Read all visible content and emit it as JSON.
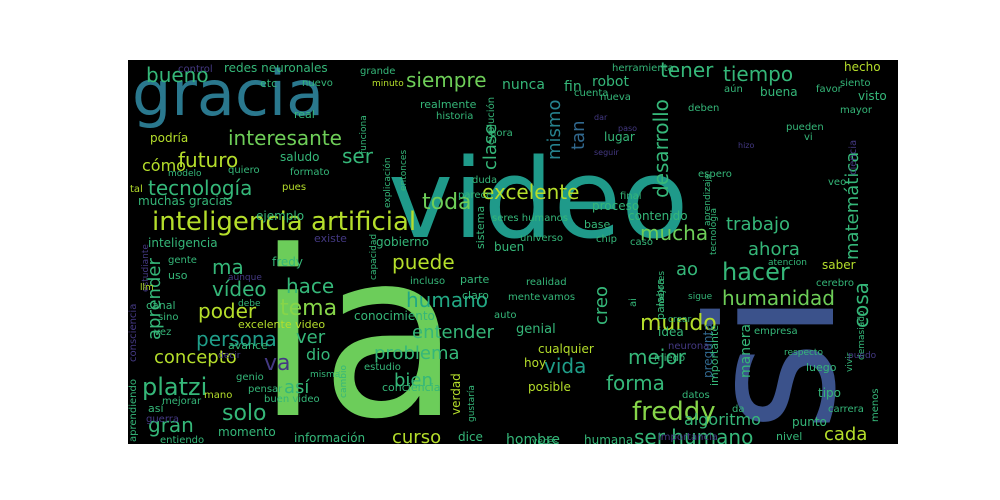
{
  "chart_data": {
    "type": "wordcloud",
    "words": [
      {
        "text": "ia",
        "color": "#6ccd5a"
      },
      {
        "text": "si",
        "color": "#3b528b"
      },
      {
        "text": "video",
        "color": "#1f9a8a"
      },
      {
        "text": "gracia",
        "color": "#2a788e"
      },
      {
        "text": "inteligencia artificial",
        "color": "#b5de2b"
      },
      {
        "text": "excelente",
        "color": "#b5de2b"
      },
      {
        "text": "freddy",
        "color": "#86d549"
      },
      {
        "text": "platzi",
        "color": "#35b779"
      },
      {
        "text": "humano",
        "color": "#22a884"
      },
      {
        "text": "hacer",
        "color": "#35b779"
      },
      {
        "text": "tecnología",
        "color": "#35b779"
      },
      {
        "text": "futuro",
        "color": "#b5de2b"
      },
      {
        "text": "interesante",
        "color": "#6ece58"
      },
      {
        "text": "persona",
        "color": "#1f9e89"
      },
      {
        "text": "toda",
        "color": "#6ece58"
      },
      {
        "text": "tema",
        "color": "#86d549"
      },
      {
        "text": "desarrollo",
        "color": "#35b779"
      },
      {
        "text": "solo",
        "color": "#35b779"
      },
      {
        "text": "mundo",
        "color": "#b5de2b"
      },
      {
        "text": "vida",
        "color": "#1f9e89"
      },
      {
        "text": "puede",
        "color": "#b5de2b"
      },
      {
        "text": "mucha",
        "color": "#6ece58"
      },
      {
        "text": "humanidad",
        "color": "#6ece58"
      },
      {
        "text": "bueno",
        "color": "#35b779"
      },
      {
        "text": "siempre",
        "color": "#6ece58"
      },
      {
        "text": "tiempo",
        "color": "#35b779"
      },
      {
        "text": "tener",
        "color": "#35b779"
      },
      {
        "text": "ser",
        "color": "#35b779"
      },
      {
        "text": "cómo",
        "color": "#b5de2b"
      },
      {
        "text": "ma",
        "color": "#35b779"
      },
      {
        "text": "vídeo",
        "color": "#35b779"
      },
      {
        "text": "poder",
        "color": "#b5de2b"
      },
      {
        "text": "concepto",
        "color": "#b5de2b"
      },
      {
        "text": "mejor",
        "color": "#35b779"
      },
      {
        "text": "forma",
        "color": "#35b779"
      },
      {
        "text": "ser humano",
        "color": "#35b779"
      },
      {
        "text": "entender",
        "color": "#35b779"
      },
      {
        "text": "problema",
        "color": "#35b779"
      },
      {
        "text": "gran",
        "color": "#35b779"
      },
      {
        "text": "hace",
        "color": "#35b779"
      },
      {
        "text": "ahora",
        "color": "#35b779"
      },
      {
        "text": "ao",
        "color": "#35b779"
      },
      {
        "text": "trabajo",
        "color": "#35b779"
      },
      {
        "text": "creo",
        "color": "#35b779"
      },
      {
        "text": "cosa",
        "color": "#35b779"
      },
      {
        "text": "matemática",
        "color": "#35b779"
      },
      {
        "text": "mismo",
        "color": "#26828e"
      },
      {
        "text": "tan",
        "color": "#31688e"
      },
      {
        "text": "clase",
        "color": "#35b779"
      },
      {
        "text": "aprender",
        "color": "#35b779"
      },
      {
        "text": "así",
        "color": "#35b779"
      },
      {
        "text": "bien",
        "color": "#35b779"
      },
      {
        "text": "ver",
        "color": "#35b779"
      },
      {
        "text": "dio",
        "color": "#35b779"
      },
      {
        "text": "va",
        "color": "#443983"
      },
      {
        "text": "curso",
        "color": "#b5de2b"
      },
      {
        "text": "cada",
        "color": "#b5de2b"
      },
      {
        "text": "algoritmo",
        "color": "#35b779"
      },
      {
        "text": "nunca",
        "color": "#35b779"
      },
      {
        "text": "robot",
        "color": "#35b779"
      },
      {
        "text": "fin",
        "color": "#35b779"
      },
      {
        "text": "buena",
        "color": "#35b779"
      },
      {
        "text": "hecho",
        "color": "#b5de2b"
      },
      {
        "text": "visto",
        "color": "#35b779"
      },
      {
        "text": "mayor",
        "color": "#35b779"
      },
      {
        "text": "ciencia",
        "color": "#443983"
      },
      {
        "text": "pregunta",
        "color": "#31688e"
      },
      {
        "text": "manera",
        "color": "#35b779"
      },
      {
        "text": "tipo",
        "color": "#35b779"
      },
      {
        "text": "saber",
        "color": "#b5de2b"
      },
      {
        "text": "cerebro",
        "color": "#35b779"
      },
      {
        "text": "punto",
        "color": "#35b779"
      },
      {
        "text": "nivel",
        "color": "#35b779"
      },
      {
        "text": "carrera",
        "color": "#35b779"
      },
      {
        "text": "luego",
        "color": "#35b779"
      },
      {
        "text": "menos",
        "color": "#35b779"
      },
      {
        "text": "humana",
        "color": "#35b779"
      },
      {
        "text": "importancia",
        "color": "#443983"
      },
      {
        "text": "hombre",
        "color": "#35b779"
      },
      {
        "text": "información",
        "color": "#35b779"
      },
      {
        "text": "momento",
        "color": "#35b779"
      },
      {
        "text": "dice",
        "color": "#35b779"
      },
      {
        "text": "verdad",
        "color": "#b5de2b"
      },
      {
        "text": "gustaría",
        "color": "#35b779"
      },
      {
        "text": "cualquier",
        "color": "#b5de2b"
      },
      {
        "text": "posible",
        "color": "#b5de2b"
      },
      {
        "text": "genial",
        "color": "#35b779"
      },
      {
        "text": "realidad",
        "color": "#35b779"
      },
      {
        "text": "mente",
        "color": "#35b779"
      },
      {
        "text": "vamos",
        "color": "#35b779"
      },
      {
        "text": "importante",
        "color": "#35b779"
      },
      {
        "text": "idea",
        "color": "#35b779"
      },
      {
        "text": "neurona",
        "color": "#443983"
      },
      {
        "text": "miedo",
        "color": "#35b779"
      },
      {
        "text": "datos",
        "color": "#35b779"
      },
      {
        "text": "da",
        "color": "#35b779"
      },
      {
        "text": "contenido",
        "color": "#35b779"
      },
      {
        "text": "proceso",
        "color": "#35b779"
      },
      {
        "text": "base",
        "color": "#35b779"
      },
      {
        "text": "buen",
        "color": "#35b779"
      },
      {
        "text": "universo",
        "color": "#35b779"
      },
      {
        "text": "chip",
        "color": "#35b779"
      },
      {
        "text": "gobierno",
        "color": "#35b779"
      },
      {
        "text": "existe",
        "color": "#443983"
      },
      {
        "text": "inteligencia",
        "color": "#35b779"
      },
      {
        "text": "gente",
        "color": "#35b779"
      },
      {
        "text": "fredy",
        "color": "#35b779"
      },
      {
        "text": "uso",
        "color": "#35b779"
      },
      {
        "text": "canal",
        "color": "#35b779"
      },
      {
        "text": "muchas gracias",
        "color": "#35b779"
      },
      {
        "text": "ejemplo",
        "color": "#35b779"
      },
      {
        "text": "sistema",
        "color": "#35b779"
      },
      {
        "text": "seres humanos",
        "color": "#35b779"
      },
      {
        "text": "excelente video",
        "color": "#b5de2b"
      },
      {
        "text": "avance",
        "color": "#35b779"
      },
      {
        "text": "conocimiento",
        "color": "#35b779"
      },
      {
        "text": "estudio",
        "color": "#35b779"
      },
      {
        "text": "conciencia",
        "color": "#35b779"
      },
      {
        "text": "buen video",
        "color": "#35b779"
      },
      {
        "text": "genio",
        "color": "#35b779"
      },
      {
        "text": "pensar",
        "color": "#35b779"
      },
      {
        "text": "mano",
        "color": "#b5de2b"
      },
      {
        "text": "así",
        "color": "#35b779"
      },
      {
        "text": "mejorar",
        "color": "#35b779"
      },
      {
        "text": "guerra",
        "color": "#443983"
      },
      {
        "text": "entiendo",
        "color": "#35b779"
      },
      {
        "text": "aprendiendo",
        "color": "#35b779"
      },
      {
        "text": "consciencia",
        "color": "#443983"
      },
      {
        "text": "estudiante",
        "color": "#443983"
      },
      {
        "text": "podría",
        "color": "#b5de2b"
      },
      {
        "text": "saludo",
        "color": "#35b779"
      },
      {
        "text": "formato",
        "color": "#35b779"
      },
      {
        "text": "modelo",
        "color": "#35b779"
      },
      {
        "text": "quiero",
        "color": "#35b779"
      },
      {
        "text": "tal",
        "color": "#b5de2b"
      },
      {
        "text": "pues",
        "color": "#b5de2b"
      },
      {
        "text": "control",
        "color": "#443983"
      },
      {
        "text": "redes neuronales",
        "color": "#35b779"
      },
      {
        "text": "grande",
        "color": "#35b779"
      },
      {
        "text": "realmente",
        "color": "#35b779"
      },
      {
        "text": "herramienta",
        "color": "#35b779"
      },
      {
        "text": "etc",
        "color": "#35b779"
      },
      {
        "text": "nuevo",
        "color": "#35b779"
      },
      {
        "text": "minuto",
        "color": "#b5de2b"
      },
      {
        "text": "real",
        "color": "#35b779"
      },
      {
        "text": "funciona",
        "color": "#35b779"
      },
      {
        "text": "evolución",
        "color": "#35b779"
      },
      {
        "text": "capacidad",
        "color": "#35b779"
      },
      {
        "text": "explicación",
        "color": "#35b779"
      },
      {
        "text": "entonces",
        "color": "#35b779"
      },
      {
        "text": "hora",
        "color": "#35b779"
      },
      {
        "text": "duda",
        "color": "#35b779"
      },
      {
        "text": "parece",
        "color": "#35b779"
      },
      {
        "text": "historia",
        "color": "#35b779"
      },
      {
        "text": "incluso",
        "color": "#35b779"
      },
      {
        "text": "parte",
        "color": "#35b779"
      },
      {
        "text": "claro",
        "color": "#35b779"
      },
      {
        "text": "lugar",
        "color": "#35b779"
      },
      {
        "text": "espero",
        "color": "#35b779"
      },
      {
        "text": "cuenta",
        "color": "#35b779"
      },
      {
        "text": "nueva",
        "color": "#35b779"
      },
      {
        "text": "deben",
        "color": "#35b779"
      },
      {
        "text": "aún",
        "color": "#35b779"
      },
      {
        "text": "favor",
        "color": "#35b779"
      },
      {
        "text": "siento",
        "color": "#35b779"
      },
      {
        "text": "pueden",
        "color": "#35b779"
      },
      {
        "text": "vi",
        "color": "#35b779"
      },
      {
        "text": "veo",
        "color": "#35b779"
      },
      {
        "text": "final",
        "color": "#35b779"
      },
      {
        "text": "caso",
        "color": "#35b779"
      },
      {
        "text": "aprendizaje",
        "color": "#35b779"
      },
      {
        "text": "tecnologia",
        "color": "#35b779"
      },
      {
        "text": "atencion",
        "color": "#35b779"
      },
      {
        "text": "palabra",
        "color": "#35b779"
      },
      {
        "text": "sigue",
        "color": "#35b779"
      },
      {
        "text": "mejores",
        "color": "#35b779"
      },
      {
        "text": "crear",
        "color": "#35b779"
      },
      {
        "text": "auto",
        "color": "#35b779"
      },
      {
        "text": "hoy",
        "color": "#b5de2b"
      },
      {
        "text": "veces",
        "color": "#35b779"
      },
      {
        "text": "empresa",
        "color": "#35b779"
      },
      {
        "text": "respecto",
        "color": "#35b779"
      },
      {
        "text": "vivir",
        "color": "#35b779"
      },
      {
        "text": "demasiado",
        "color": "#35b779"
      },
      {
        "text": "llm",
        "color": "#b5de2b"
      },
      {
        "text": "sino",
        "color": "#35b779"
      },
      {
        "text": "vez",
        "color": "#35b779"
      },
      {
        "text": "debe",
        "color": "#35b779"
      },
      {
        "text": "decir",
        "color": "#443983"
      },
      {
        "text": "aunque",
        "color": "#443983"
      },
      {
        "text": "cambio",
        "color": "#35b779"
      },
      {
        "text": "misma",
        "color": "#35b779"
      },
      {
        "text": "ai",
        "color": "#35b779"
      },
      {
        "text": "puedo",
        "color": "#443983"
      },
      {
        "text": "dar",
        "color": "#443983"
      },
      {
        "text": "paso",
        "color": "#443983"
      },
      {
        "text": "seguir",
        "color": "#443983"
      },
      {
        "text": "hizo",
        "color": "#443983"
      }
    ]
  }
}
